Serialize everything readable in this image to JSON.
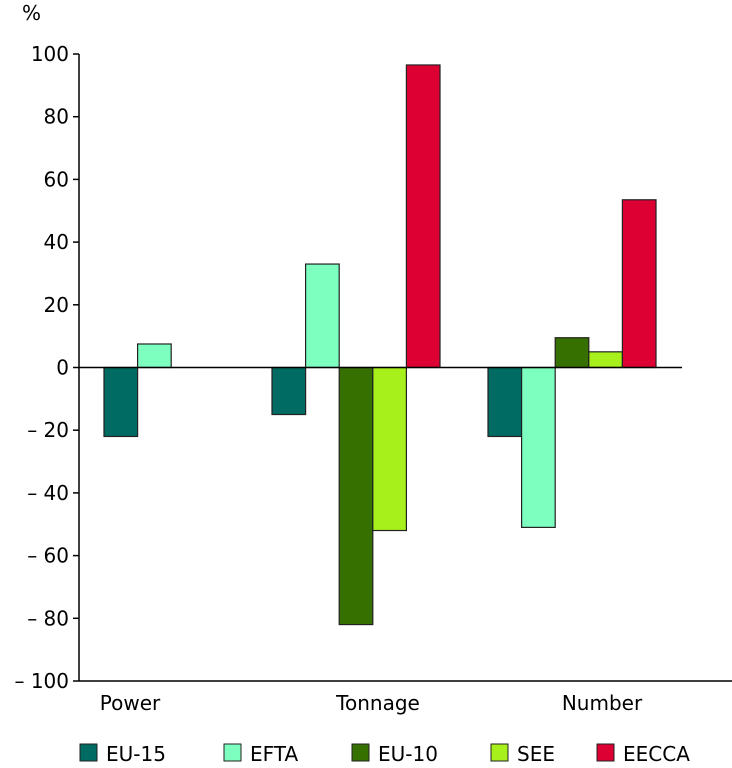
{
  "chart_data": {
    "type": "bar",
    "title": "",
    "ylabel": "%",
    "xlabel": "",
    "ylim": [
      -100,
      100
    ],
    "yticks": [
      100,
      80,
      60,
      40,
      20,
      0,
      -20,
      -40,
      -60,
      -80,
      -100
    ],
    "ytick_labels": [
      "100",
      "80",
      "60",
      "40",
      "20",
      "0",
      "– 20",
      "– 40",
      "– 60",
      "– 80",
      "– 100"
    ],
    "categories": [
      "Power",
      "Tonnage",
      "Number"
    ],
    "series": [
      {
        "name": "EU-15",
        "color": "#006b63",
        "values": [
          -22,
          -15,
          -22
        ]
      },
      {
        "name": "EFTA",
        "color": "#7dffc0",
        "values": [
          7.5,
          33,
          -51
        ]
      },
      {
        "name": "EU-10",
        "color": "#367000",
        "values": [
          null,
          -82,
          9.5
        ]
      },
      {
        "name": "SEE",
        "color": "#a8f01c",
        "values": [
          null,
          -52,
          5
        ]
      },
      {
        "name": "EECCA",
        "color": "#dc0033",
        "values": [
          null,
          96.5,
          53.5
        ]
      }
    ],
    "legend_position": "bottom",
    "grid": false
  }
}
